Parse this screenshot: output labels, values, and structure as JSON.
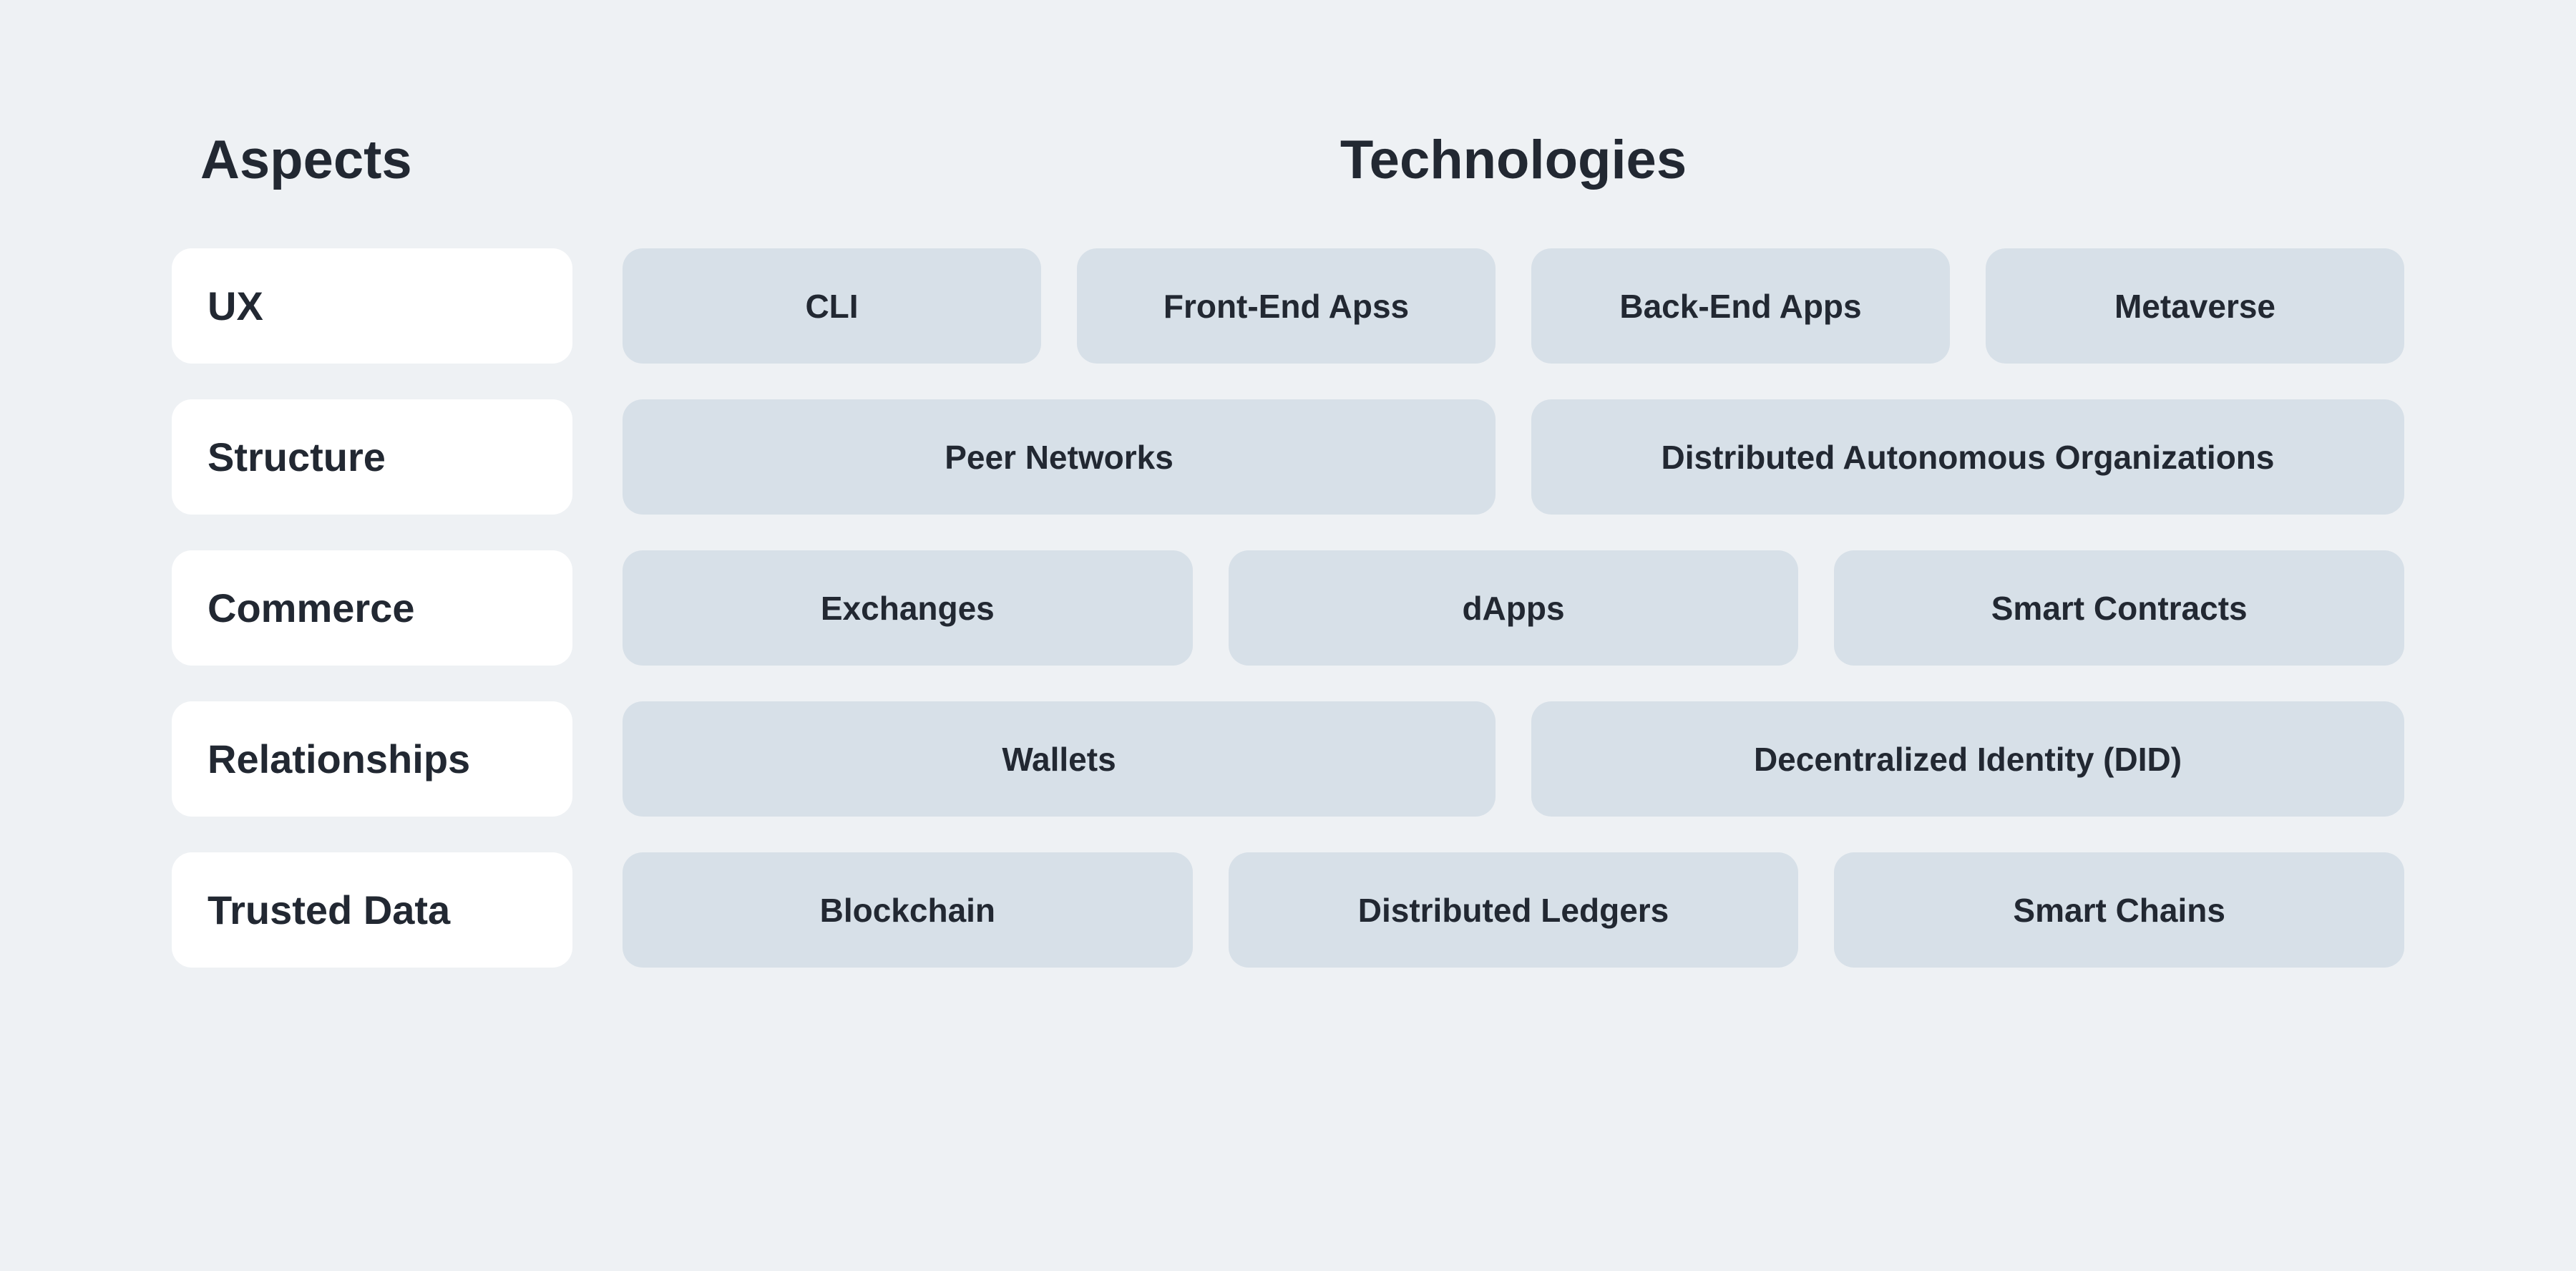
{
  "type": "infographic-table",
  "background_color": "#eef1f4",
  "aspect_cell_color": "#ffffff",
  "tech_cell_color": "#d7e0e8",
  "text_color": "#222832",
  "border_radius": 28,
  "header_fontsize": 76,
  "aspect_fontsize": 56,
  "tech_fontsize": 46,
  "headers": {
    "aspects": "Aspects",
    "technologies": "Technologies"
  },
  "rows": [
    {
      "aspect": "UX",
      "technologies": [
        "CLI",
        "Front-End Apss",
        "Back-End Apps",
        "Metaverse"
      ]
    },
    {
      "aspect": "Structure",
      "technologies": [
        "Peer Networks",
        "Distributed Autonomous Organizations"
      ]
    },
    {
      "aspect": "Commerce",
      "technologies": [
        "Exchanges",
        "dApps",
        "Smart Contracts"
      ]
    },
    {
      "aspect": "Relationships",
      "technologies": [
        "Wallets",
        "Decentralized Identity (DID)"
      ]
    },
    {
      "aspect": "Trusted Data",
      "technologies": [
        "Blockchain",
        "Distributed Ledgers",
        "Smart Chains"
      ]
    }
  ]
}
